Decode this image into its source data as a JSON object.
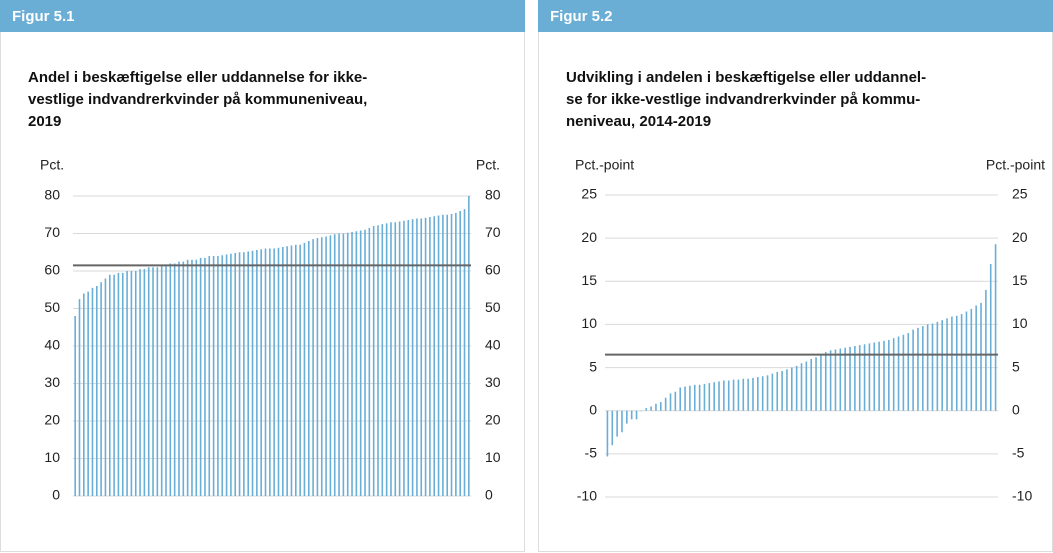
{
  "chart_data": [
    {
      "type": "bar",
      "figure_label": "Figur 5.1",
      "title": [
        "Andel i beskæftigelse eller uddannelse for ikke-",
        "vestlige indvandrerkvinder på kommuneniveau,",
        "2019"
      ],
      "y_label": "Pct.",
      "color": "#6aaed6",
      "grid": true,
      "reference_line": 61.5,
      "ylim": [
        0,
        80
      ],
      "yticks": [
        0,
        10,
        20,
        30,
        40,
        50,
        60,
        70,
        80
      ],
      "values": [
        48,
        52.5,
        54,
        54.5,
        55.5,
        56,
        57,
        58,
        59,
        59,
        59.5,
        59.5,
        60,
        60,
        60,
        60.5,
        60.5,
        61,
        61,
        61,
        61.5,
        61.5,
        62,
        62,
        62.5,
        62.5,
        63,
        63,
        63,
        63.5,
        63.5,
        64,
        64,
        64,
        64.2,
        64.4,
        64.6,
        64.8,
        65,
        65,
        65.2,
        65.4,
        65.6,
        65.8,
        66,
        66,
        66,
        66.2,
        66.4,
        66.6,
        66.8,
        67,
        67,
        67.5,
        68,
        68.5,
        68.8,
        69,
        69.2,
        69.5,
        69.8,
        70,
        70,
        70.2,
        70.4,
        70.6,
        70.8,
        71,
        71.5,
        72,
        72.2,
        72.5,
        72.7,
        73,
        73,
        73.2,
        73.4,
        73.6,
        73.8,
        74,
        74,
        74.2,
        74.4,
        74.6,
        74.8,
        75,
        75,
        75.2,
        75.5,
        76,
        76.5,
        80
      ]
    },
    {
      "type": "bar",
      "figure_label": "Figur 5.2",
      "title": [
        "Udvikling i andelen i beskæftigelse eller uddannel-",
        "se for ikke-vestlige indvandrerkvinder på kommu-",
        "neniveau, 2014-2019"
      ],
      "y_label": "Pct.-point",
      "color": "#6aaed6",
      "grid": true,
      "reference_line": 6.5,
      "ylim": [
        -10,
        25
      ],
      "yticks": [
        -10,
        -5,
        0,
        5,
        10,
        15,
        20,
        25
      ],
      "values": [
        -5.3,
        -4,
        -3,
        -2.5,
        -1.5,
        -1,
        -1,
        0,
        0.3,
        0.5,
        0.8,
        1,
        1.5,
        2,
        2.2,
        2.7,
        2.8,
        2.9,
        3,
        3,
        3.1,
        3.2,
        3.3,
        3.4,
        3.5,
        3.5,
        3.6,
        3.6,
        3.7,
        3.7,
        3.8,
        3.9,
        4,
        4.1,
        4.3,
        4.5,
        4.6,
        4.8,
        5,
        5.2,
        5.5,
        5.7,
        6,
        6.2,
        6.5,
        6.8,
        7,
        7.1,
        7.2,
        7.3,
        7.4,
        7.5,
        7.6,
        7.7,
        7.8,
        7.9,
        8,
        8.1,
        8.2,
        8.4,
        8.6,
        8.8,
        9,
        9.4,
        9.6,
        9.8,
        10,
        10.1,
        10.3,
        10.5,
        10.7,
        10.9,
        11,
        11.2,
        11.5,
        11.8,
        12.2,
        12.5,
        14,
        17,
        19.3
      ]
    }
  ]
}
